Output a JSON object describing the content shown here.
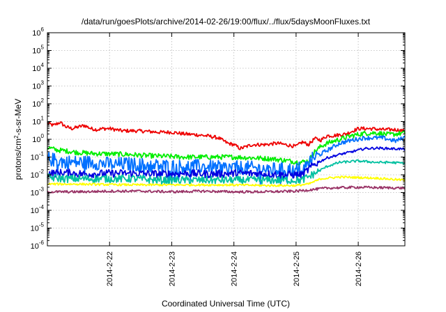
{
  "chart_data": {
    "type": "line",
    "title": "/data/run/goesPlots/archive/2014-02-26/19:00/flux/../flux/5daysMoonFluxes.txt",
    "xlabel": "Coordinated Universal Time (UTC)",
    "ylabel": {
      "base": "protons/cm",
      "sup": "2",
      "rest": "-s-sr-MeV"
    },
    "x_unit": "day",
    "xlim": [
      0,
      5.75
    ],
    "ylim_log10": [
      -6,
      6
    ],
    "y_scale": "log",
    "grid": true,
    "x_ticks": [
      {
        "value": 1,
        "label": "2014-2-22"
      },
      {
        "value": 2,
        "label": "2014-2-23"
      },
      {
        "value": 3,
        "label": "2014-2-24"
      },
      {
        "value": 4,
        "label": "2014-2-25"
      },
      {
        "value": 5,
        "label": "2014-2-26"
      }
    ],
    "y_ticks": [
      {
        "value": -6,
        "base": "10",
        "exp": "-6"
      },
      {
        "value": -5,
        "base": "10",
        "exp": "-5"
      },
      {
        "value": -4,
        "base": "10",
        "exp": "-4"
      },
      {
        "value": -3,
        "base": "10",
        "exp": "-3"
      },
      {
        "value": -2,
        "base": "10",
        "exp": "-2"
      },
      {
        "value": -1,
        "base": "10",
        "exp": "-1"
      },
      {
        "value": 0,
        "base": "10",
        "exp": "0"
      },
      {
        "value": 1,
        "base": "10",
        "exp": "1"
      },
      {
        "value": 2,
        "base": "10",
        "exp": "2"
      },
      {
        "value": 3,
        "base": "10",
        "exp": "3"
      },
      {
        "value": 4,
        "base": "10",
        "exp": "4"
      },
      {
        "value": 5,
        "base": "10",
        "exp": "5"
      },
      {
        "value": 6,
        "base": "10",
        "exp": "6"
      }
    ],
    "series": [
      {
        "color": "#ee0000",
        "noise": 0.1,
        "points": [
          [
            0,
            8
          ],
          [
            0.1,
            6
          ],
          [
            0.2,
            9
          ],
          [
            0.3,
            5
          ],
          [
            0.4,
            4
          ],
          [
            0.5,
            5
          ],
          [
            0.6,
            6
          ],
          [
            0.7,
            4
          ],
          [
            0.8,
            3.5
          ],
          [
            0.9,
            4
          ],
          [
            1.0,
            4
          ],
          [
            1.2,
            3
          ],
          [
            1.4,
            3
          ],
          [
            1.6,
            2.8
          ],
          [
            1.8,
            2.5
          ],
          [
            2.0,
            2.5
          ],
          [
            2.2,
            2
          ],
          [
            2.4,
            1.8
          ],
          [
            2.6,
            1.5
          ],
          [
            2.75,
            1.2
          ],
          [
            2.9,
            0.6
          ],
          [
            3.0,
            0.5
          ],
          [
            3.1,
            0.3
          ],
          [
            3.3,
            0.5
          ],
          [
            3.5,
            0.5
          ],
          [
            3.7,
            0.6
          ],
          [
            3.9,
            0.45
          ],
          [
            4.0,
            0.4
          ],
          [
            4.1,
            0.7
          ],
          [
            4.2,
            0.5
          ],
          [
            4.3,
            1.1
          ],
          [
            4.4,
            0.9
          ],
          [
            4.5,
            1.6
          ],
          [
            4.6,
            1.6
          ],
          [
            4.8,
            2
          ],
          [
            5.0,
            4
          ],
          [
            5.2,
            4
          ],
          [
            5.4,
            3.5
          ],
          [
            5.6,
            3.5
          ],
          [
            5.75,
            2.8
          ]
        ]
      },
      {
        "color": "#00ee00",
        "noise": 0.14,
        "points": [
          [
            0,
            0.35
          ],
          [
            0.15,
            0.25
          ],
          [
            0.3,
            0.22
          ],
          [
            0.5,
            0.18
          ],
          [
            0.7,
            0.16
          ],
          [
            1.0,
            0.15
          ],
          [
            1.3,
            0.14
          ],
          [
            1.6,
            0.12
          ],
          [
            1.9,
            0.11
          ],
          [
            2.2,
            0.1
          ],
          [
            2.5,
            0.1
          ],
          [
            2.8,
            0.1
          ],
          [
            3.0,
            0.1
          ],
          [
            3.3,
            0.09
          ],
          [
            3.6,
            0.08
          ],
          [
            3.9,
            0.06
          ],
          [
            4.05,
            0.05
          ],
          [
            4.2,
            0.06
          ],
          [
            4.3,
            0.2
          ],
          [
            4.4,
            0.4
          ],
          [
            4.5,
            0.6
          ],
          [
            4.7,
            1.0
          ],
          [
            4.9,
            1.6
          ],
          [
            5.1,
            2.2
          ],
          [
            5.3,
            2.3
          ],
          [
            5.5,
            1.8
          ],
          [
            5.75,
            2.3
          ]
        ]
      },
      {
        "color": "#0070ff",
        "noise": 0.4,
        "points": [
          [
            0,
            0.08
          ],
          [
            0.2,
            0.06
          ],
          [
            0.4,
            0.05
          ],
          [
            0.7,
            0.05
          ],
          [
            1.0,
            0.04
          ],
          [
            1.3,
            0.04
          ],
          [
            1.6,
            0.035
          ],
          [
            2.0,
            0.03
          ],
          [
            2.4,
            0.03
          ],
          [
            2.8,
            0.025
          ],
          [
            3.2,
            0.025
          ],
          [
            3.6,
            0.02
          ],
          [
            4.0,
            0.02
          ],
          [
            4.15,
            0.03
          ],
          [
            4.3,
            0.1
          ],
          [
            4.4,
            0.15
          ],
          [
            4.55,
            0.3
          ],
          [
            4.7,
            0.6
          ],
          [
            4.9,
            0.9
          ],
          [
            5.1,
            1.2
          ],
          [
            5.4,
            1.2
          ],
          [
            5.6,
            0.8
          ],
          [
            5.75,
            1.3
          ]
        ]
      },
      {
        "color": "#0000e0",
        "noise": 0.22,
        "points": [
          [
            0,
            0.012
          ],
          [
            0.3,
            0.013
          ],
          [
            0.6,
            0.011
          ],
          [
            1.0,
            0.012
          ],
          [
            1.4,
            0.012
          ],
          [
            1.8,
            0.011
          ],
          [
            2.2,
            0.012
          ],
          [
            2.6,
            0.011
          ],
          [
            3.0,
            0.012
          ],
          [
            3.4,
            0.012
          ],
          [
            3.8,
            0.01
          ],
          [
            4.1,
            0.01
          ],
          [
            4.2,
            0.02
          ],
          [
            4.3,
            0.04
          ],
          [
            4.5,
            0.09
          ],
          [
            4.7,
            0.14
          ],
          [
            4.9,
            0.2
          ],
          [
            5.1,
            0.3
          ],
          [
            5.3,
            0.32
          ],
          [
            5.5,
            0.3
          ],
          [
            5.75,
            0.28
          ]
        ]
      },
      {
        "color": "#00c0a0",
        "noise": 0.22,
        "points": [
          [
            0,
            0.007
          ],
          [
            0.3,
            0.006
          ],
          [
            0.6,
            0.006
          ],
          [
            1.0,
            0.006
          ],
          [
            1.4,
            0.006
          ],
          [
            1.8,
            0.005
          ],
          [
            2.2,
            0.005
          ],
          [
            2.6,
            0.005
          ],
          [
            3.0,
            0.005
          ],
          [
            3.4,
            0.005
          ],
          [
            3.8,
            0.005
          ],
          [
            4.1,
            0.005
          ],
          [
            4.3,
            0.012
          ],
          [
            4.5,
            0.03
          ],
          [
            4.7,
            0.05
          ],
          [
            5.0,
            0.06
          ],
          [
            5.3,
            0.05
          ],
          [
            5.5,
            0.05
          ],
          [
            5.75,
            0.045
          ]
        ]
      },
      {
        "color": "#ffff00",
        "noise": 0.06,
        "points": [
          [
            0,
            0.003
          ],
          [
            0.5,
            0.003
          ],
          [
            1.0,
            0.0028
          ],
          [
            1.5,
            0.0027
          ],
          [
            2.0,
            0.0027
          ],
          [
            2.5,
            0.0027
          ],
          [
            3.0,
            0.0027
          ],
          [
            3.5,
            0.0025
          ],
          [
            4.0,
            0.0025
          ],
          [
            4.2,
            0.003
          ],
          [
            4.4,
            0.006
          ],
          [
            4.7,
            0.0075
          ],
          [
            5.0,
            0.007
          ],
          [
            5.3,
            0.0065
          ],
          [
            5.75,
            0.005
          ]
        ]
      },
      {
        "color": "#993366",
        "noise": 0.07,
        "points": [
          [
            0,
            0.0011
          ],
          [
            0.5,
            0.0011
          ],
          [
            1.0,
            0.0012
          ],
          [
            1.5,
            0.0012
          ],
          [
            2.0,
            0.0011
          ],
          [
            2.5,
            0.0012
          ],
          [
            3.0,
            0.0011
          ],
          [
            3.5,
            0.0011
          ],
          [
            4.0,
            0.0012
          ],
          [
            4.2,
            0.0014
          ],
          [
            4.5,
            0.0018
          ],
          [
            5.0,
            0.002
          ],
          [
            5.3,
            0.0019
          ],
          [
            5.75,
            0.0018
          ]
        ]
      }
    ]
  }
}
